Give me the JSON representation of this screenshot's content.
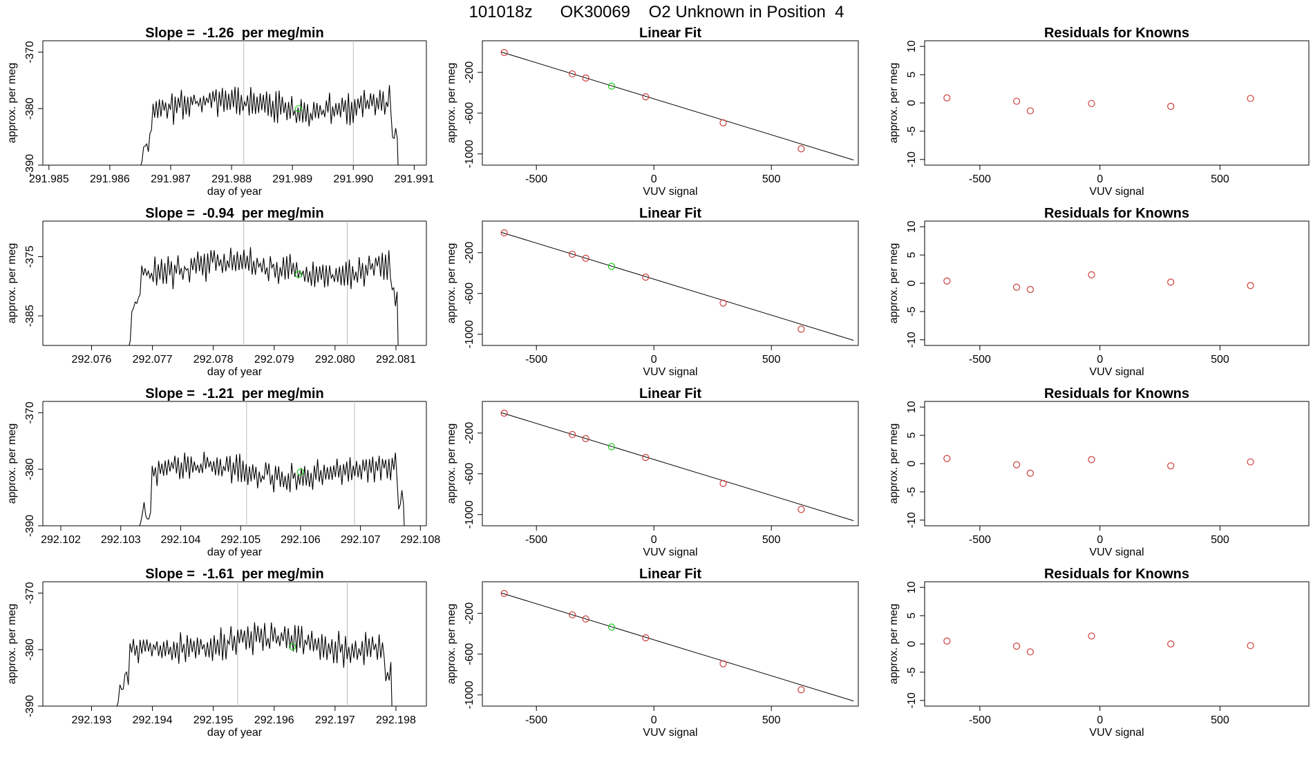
{
  "suptitle": "101018z      OK30069    O2 Unknown in Position  4",
  "colors": {
    "line": "#000000",
    "known": "#cd3c3c",
    "unknown": "#22cc22",
    "vline": "#bbbbbb"
  },
  "chart_data": [
    {
      "type": "line",
      "title": "Slope =  -1.26  per meg/min",
      "xlabel": "day of year",
      "ylabel": "approx. per meg",
      "xlim": [
        291.9849,
        291.9912
      ],
      "ylim": [
        -390,
        -368
      ],
      "xticks": [
        "291.985",
        "291.986",
        "291.987",
        "291.988",
        "291.989",
        "291.990",
        "291.991"
      ],
      "yticks": [
        "-370",
        "-380",
        "-390"
      ],
      "x_start": 291.9864,
      "x_end": 291.9908,
      "seed": 11,
      "level": -379.5,
      "amp": 3.2,
      "vlines": [
        291.9882,
        291.99
      ],
      "marker": {
        "x": 291.9891,
        "y": -380
      }
    },
    {
      "type": "scatter-fit",
      "title": "Linear Fit",
      "xlabel": "VUV signal",
      "ylabel": "approx. per meg",
      "xlim": [
        -730,
        870
      ],
      "ylim": [
        -1110,
        110
      ],
      "xticks": [
        "-500",
        "0",
        "500"
      ],
      "yticks": [
        "-200",
        "-600",
        "-1000"
      ],
      "line": {
        "x": [
          -650,
          850
        ],
        "y": [
          0,
          -1060
        ]
      },
      "knowns": [
        {
          "x": -637,
          "y": -5
        },
        {
          "x": -347,
          "y": -215
        },
        {
          "x": -290,
          "y": -255
        },
        {
          "x": -35,
          "y": -440
        },
        {
          "x": 295,
          "y": -695
        },
        {
          "x": 627,
          "y": -950
        }
      ],
      "unknown": {
        "x": -180,
        "y": -335
      }
    },
    {
      "type": "scatter",
      "title": "Residuals for Knowns",
      "xlabel": "VUV signal",
      "ylabel": "approx. per meg",
      "xlim": [
        -730,
        870
      ],
      "ylim": [
        -11,
        11
      ],
      "xticks": [
        "-500",
        "0",
        "500"
      ],
      "yticks": [
        "10",
        "5",
        "0",
        "-5",
        "-10"
      ],
      "points": [
        {
          "x": -637,
          "y": 0.9
        },
        {
          "x": -347,
          "y": 0.3
        },
        {
          "x": -290,
          "y": -1.4
        },
        {
          "x": -35,
          "y": -0.1
        },
        {
          "x": 295,
          "y": -0.6
        },
        {
          "x": 627,
          "y": 0.8
        }
      ]
    },
    {
      "type": "line",
      "title": "Slope =  -0.94  per meg/min",
      "xlabel": "day of year",
      "ylabel": "approx. per meg",
      "xlim": [
        292.0752,
        292.0815
      ],
      "ylim": [
        -390,
        -369
      ],
      "xticks": [
        "292.076",
        "292.077",
        "292.078",
        "292.079",
        "292.080",
        "292.081"
      ],
      "yticks": [
        "-375",
        "-385"
      ],
      "x_start": 292.0765,
      "x_end": 292.0811,
      "seed": 23,
      "level": -377,
      "amp": 3.3,
      "vlines": [
        292.0785,
        292.0802
      ],
      "marker": {
        "x": 292.0794,
        "y": -378
      }
    },
    {
      "type": "scatter-fit",
      "title": "Linear Fit",
      "xlabel": "VUV signal",
      "ylabel": "approx. per meg",
      "xlim": [
        -730,
        870
      ],
      "ylim": [
        -1110,
        110
      ],
      "xticks": [
        "-500",
        "0",
        "500"
      ],
      "yticks": [
        "-200",
        "-600",
        "-1000"
      ],
      "line": {
        "x": [
          -650,
          850
        ],
        "y": [
          0,
          -1060
        ]
      },
      "knowns": [
        {
          "x": -637,
          "y": -5
        },
        {
          "x": -347,
          "y": -215
        },
        {
          "x": -290,
          "y": -255
        },
        {
          "x": -35,
          "y": -440
        },
        {
          "x": 295,
          "y": -695
        },
        {
          "x": 627,
          "y": -950
        }
      ],
      "unknown": {
        "x": -180,
        "y": -335
      }
    },
    {
      "type": "scatter",
      "title": "Residuals for Knowns",
      "xlabel": "VUV signal",
      "ylabel": "approx. per meg",
      "xlim": [
        -730,
        870
      ],
      "ylim": [
        -11,
        11
      ],
      "xticks": [
        "-500",
        "0",
        "500"
      ],
      "yticks": [
        "10",
        "5",
        "0",
        "-5",
        "-10"
      ],
      "points": [
        {
          "x": -637,
          "y": 0.4
        },
        {
          "x": -347,
          "y": -0.7
        },
        {
          "x": -290,
          "y": -1.1
        },
        {
          "x": -35,
          "y": 1.5
        },
        {
          "x": 295,
          "y": 0.2
        },
        {
          "x": 627,
          "y": -0.4
        }
      ]
    },
    {
      "type": "line",
      "title": "Slope =  -1.21  per meg/min",
      "xlabel": "day of year",
      "ylabel": "approx. per meg",
      "xlim": [
        292.1017,
        292.1081
      ],
      "ylim": [
        -390,
        -368
      ],
      "xticks": [
        "292.102",
        "292.103",
        "292.104",
        "292.105",
        "292.106",
        "292.107",
        "292.108"
      ],
      "yticks": [
        "-370",
        "-380",
        "-390"
      ],
      "x_start": 292.1032,
      "x_end": 292.1078,
      "seed": 37,
      "level": -380.5,
      "amp": 3.0,
      "vlines": [
        292.1051,
        292.1069
      ],
      "marker": {
        "x": 292.106,
        "y": -380.5
      }
    },
    {
      "type": "scatter-fit",
      "title": "Linear Fit",
      "xlabel": "VUV signal",
      "ylabel": "approx. per meg",
      "xlim": [
        -730,
        870
      ],
      "ylim": [
        -1110,
        110
      ],
      "xticks": [
        "-500",
        "0",
        "500"
      ],
      "yticks": [
        "-200",
        "-600",
        "-1000"
      ],
      "line": {
        "x": [
          -650,
          850
        ],
        "y": [
          0,
          -1060
        ]
      },
      "knowns": [
        {
          "x": -637,
          "y": -5
        },
        {
          "x": -347,
          "y": -215
        },
        {
          "x": -290,
          "y": -255
        },
        {
          "x": -35,
          "y": -440
        },
        {
          "x": 295,
          "y": -695
        },
        {
          "x": 627,
          "y": -950
        }
      ],
      "unknown": {
        "x": -180,
        "y": -335
      }
    },
    {
      "type": "scatter",
      "title": "Residuals for Knowns",
      "xlabel": "VUV signal",
      "ylabel": "approx. per meg",
      "xlim": [
        -730,
        870
      ],
      "ylim": [
        -11,
        11
      ],
      "xticks": [
        "-500",
        "0",
        "500"
      ],
      "yticks": [
        "10",
        "5",
        "0",
        "-5",
        "-10"
      ],
      "points": [
        {
          "x": -637,
          "y": 0.9
        },
        {
          "x": -347,
          "y": -0.2
        },
        {
          "x": -290,
          "y": -1.7
        },
        {
          "x": -35,
          "y": 0.7
        },
        {
          "x": 295,
          "y": -0.4
        },
        {
          "x": 627,
          "y": 0.3
        }
      ]
    },
    {
      "type": "line",
      "title": "Slope =  -1.61  per meg/min",
      "xlabel": "day of year",
      "ylabel": "approx. per meg",
      "xlim": [
        292.1922,
        292.1985
      ],
      "ylim": [
        -390,
        -368
      ],
      "xticks": [
        "292.193",
        "292.194",
        "292.195",
        "292.196",
        "292.197",
        "292.198"
      ],
      "yticks": [
        "-370",
        "-380",
        "-390"
      ],
      "x_start": 292.1933,
      "x_end": 292.198,
      "seed": 53,
      "level": -379,
      "amp": 3.4,
      "vlines": [
        292.1954,
        292.1972
      ],
      "marker": {
        "x": 292.1963,
        "y": -379.5
      }
    },
    {
      "type": "scatter-fit",
      "title": "Linear Fit",
      "xlabel": "VUV signal",
      "ylabel": "approx. per meg",
      "xlim": [
        -730,
        870
      ],
      "ylim": [
        -1110,
        110
      ],
      "xticks": [
        "-500",
        "0",
        "500"
      ],
      "yticks": [
        "-200",
        "-600",
        "-1000"
      ],
      "line": {
        "x": [
          -650,
          850
        ],
        "y": [
          0,
          -1060
        ]
      },
      "knowns": [
        {
          "x": -637,
          "y": -5
        },
        {
          "x": -347,
          "y": -215
        },
        {
          "x": -290,
          "y": -255
        },
        {
          "x": -35,
          "y": -440
        },
        {
          "x": 295,
          "y": -695
        },
        {
          "x": 627,
          "y": -950
        }
      ],
      "unknown": {
        "x": -180,
        "y": -335
      }
    },
    {
      "type": "scatter",
      "title": "Residuals for Knowns",
      "xlabel": "VUV signal",
      "ylabel": "approx. per meg",
      "xlim": [
        -730,
        870
      ],
      "ylim": [
        -11,
        11
      ],
      "xticks": [
        "-500",
        "0",
        "500"
      ],
      "yticks": [
        "10",
        "5",
        "0",
        "-5",
        "-10"
      ],
      "points": [
        {
          "x": -637,
          "y": 0.5
        },
        {
          "x": -347,
          "y": -0.4
        },
        {
          "x": -290,
          "y": -1.4
        },
        {
          "x": -35,
          "y": 1.4
        },
        {
          "x": 295,
          "y": 0.0
        },
        {
          "x": 627,
          "y": -0.3
        }
      ]
    }
  ]
}
